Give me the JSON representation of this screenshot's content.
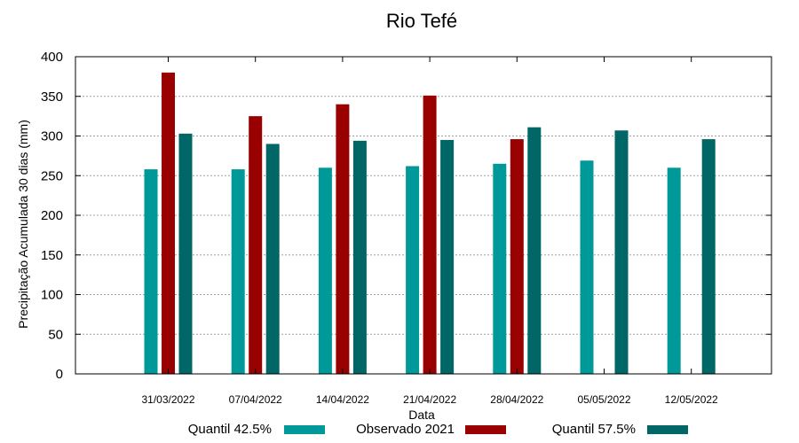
{
  "chart_data": {
    "type": "bar",
    "title": "Rio Tefé",
    "xlabel": "Data",
    "ylabel": "Precipitação Acumulada 30 dias (mm)",
    "ylim": [
      0,
      400
    ],
    "yticks": [
      0,
      50,
      100,
      150,
      200,
      250,
      300,
      350,
      400
    ],
    "grid": true,
    "legend_position": "bottom",
    "categories": [
      "31/03/2022",
      "07/04/2022",
      "14/04/2022",
      "21/04/2022",
      "28/04/2022",
      "05/05/2022",
      "12/05/2022"
    ],
    "series": [
      {
        "name": "Quantil 42.5%",
        "color": "#009999",
        "values": [
          258,
          258,
          260,
          262,
          265,
          269,
          260
        ]
      },
      {
        "name": "Observado 2021",
        "color": "#990000",
        "values": [
          380,
          325,
          340,
          351,
          296,
          null,
          null
        ]
      },
      {
        "name": "Quantil 57.5%",
        "color": "#006666",
        "values": [
          303,
          290,
          294,
          295,
          311,
          307,
          296
        ]
      }
    ]
  }
}
